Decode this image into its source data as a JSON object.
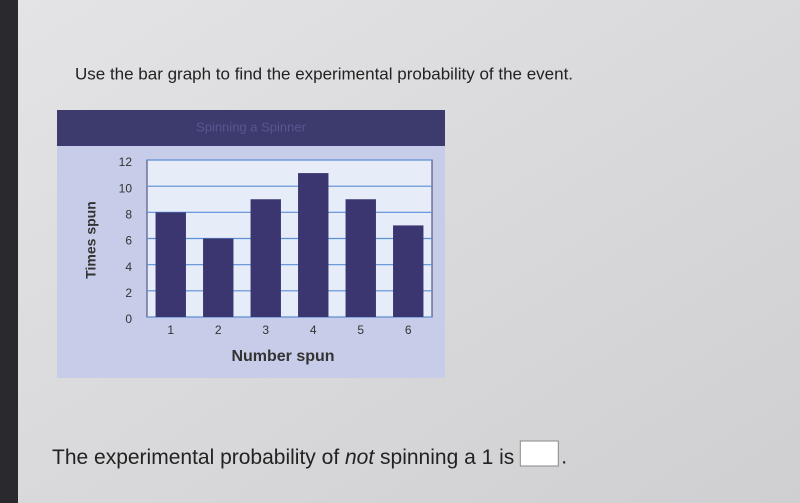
{
  "prompt": "Use the bar graph to find the experimental probability of the event.",
  "chart_data": {
    "type": "bar",
    "title": "Spinning a Spinner",
    "categories": [
      "1",
      "2",
      "3",
      "4",
      "5",
      "6"
    ],
    "values": [
      8,
      6,
      9,
      11,
      9,
      7
    ],
    "color": "#3b3670",
    "xlabel": "Number spun",
    "ylabel": "Times spun",
    "ylim": [
      0,
      12
    ],
    "yticks": [
      0,
      2,
      4,
      6,
      8,
      10,
      12
    ],
    "grid": true
  },
  "question": {
    "before": "The experimental probability of ",
    "emphasis": "not",
    "after": " spinning a 1 is",
    "end": "."
  }
}
